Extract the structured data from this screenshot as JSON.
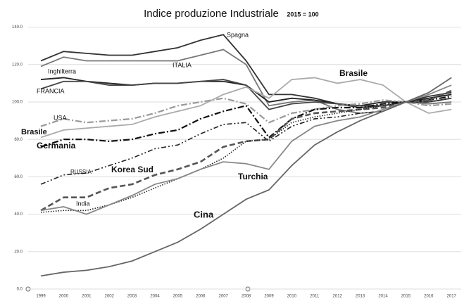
{
  "chart_data": {
    "type": "line",
    "title": "Indice produzione Industriale",
    "subtitle": "2015 = 100",
    "categories": [
      "1999",
      "2000",
      "2001",
      "2002",
      "2003",
      "2004",
      "2005",
      "2006",
      "2007",
      "2008",
      "2009",
      "2010",
      "2011",
      "2012",
      "2013",
      "2014",
      "2015",
      "2016",
      "2017"
    ],
    "ylim": [
      0,
      150
    ],
    "yticks": [
      {
        "value": 0,
        "label": "0.0"
      },
      {
        "value": 20,
        "label": "20.0"
      },
      {
        "value": 40,
        "label": "40.0"
      },
      {
        "value": 60,
        "label": "60.0"
      },
      {
        "value": 80,
        "label": "80.0"
      },
      {
        "value": 100,
        "label": "100.0"
      },
      {
        "value": 120,
        "label": "120.0"
      },
      {
        "value": 140,
        "label": "140.0"
      }
    ],
    "grid": true,
    "series": [
      {
        "name": "Spagna",
        "color": "#333333",
        "style": "solid",
        "values": [
          122,
          127,
          126,
          125,
          125,
          127,
          129,
          133,
          136,
          122,
          104,
          104,
          102,
          99,
          97,
          98,
          100,
          103,
          105
        ]
      },
      {
        "name": "ITALIA",
        "color": "#777777",
        "style": "solid",
        "values": [
          119,
          124,
          122,
          122,
          122,
          122,
          122,
          125,
          128,
          120,
          98,
          100,
          101,
          96,
          94,
          95,
          100,
          99,
          100
        ]
      },
      {
        "name": "Inghilterra",
        "color": "#222222",
        "style": "solid",
        "values": [
          112,
          113,
          111,
          110,
          109,
          110,
          110,
          111,
          111,
          109,
          100,
          102,
          101,
          99,
          98,
          100,
          100,
          102,
          104
        ]
      },
      {
        "name": "FRANCIA",
        "color": "#444444",
        "style": "solid",
        "values": [
          107,
          111,
          111,
          109,
          109,
          110,
          110,
          111,
          112,
          109,
          96,
          99,
          100,
          99,
          98,
          98,
          100,
          100,
          102
        ]
      },
      {
        "name": "USA",
        "color": "#999999",
        "style": "dashdot",
        "values": [
          87,
          91,
          89,
          90,
          91,
          94,
          98,
          100,
          102,
          99,
          89,
          94,
          96,
          98,
          99,
          101,
          100,
          98,
          99
        ]
      },
      {
        "name": "Brasile",
        "color": "#aaaaaa",
        "style": "solid",
        "values": [
          81,
          85,
          86,
          87,
          88,
          92,
          95,
          98,
          104,
          108,
          102,
          112,
          113,
          110,
          112,
          109,
          100,
          94,
          96
        ]
      },
      {
        "name": "Germania",
        "color": "#111111",
        "style": "dashdot",
        "values": [
          76,
          80,
          80,
          79,
          80,
          83,
          85,
          91,
          95,
          98,
          81,
          91,
          96,
          97,
          97,
          99,
          100,
          101,
          103
        ]
      },
      {
        "name": "RUSSIA",
        "color": "#222222",
        "style": "dashdotdot",
        "values": [
          56,
          61,
          62,
          66,
          70,
          75,
          77,
          83,
          88,
          89,
          79,
          87,
          91,
          92,
          94,
          95,
          100,
          100,
          102
        ]
      },
      {
        "name": "Korea Sud",
        "color": "#555555",
        "style": "dashed",
        "values": [
          42,
          49,
          49,
          54,
          56,
          61,
          64,
          68,
          76,
          79,
          80,
          91,
          94,
          95,
          96,
          97,
          100,
          101,
          106
        ]
      },
      {
        "name": "India",
        "color": "#222222",
        "style": "dotted",
        "values": [
          41,
          42,
          42,
          45,
          49,
          54,
          59,
          64,
          70,
          79,
          80,
          89,
          92,
          94,
          96,
          98,
          100,
          102,
          104
        ]
      },
      {
        "name": "Turchia",
        "color": "#888888",
        "style": "solid",
        "values": [
          42,
          44,
          40,
          45,
          50,
          56,
          59,
          64,
          68,
          67,
          64,
          79,
          87,
          90,
          92,
          96,
          100,
          104,
          109
        ]
      },
      {
        "name": "Cina",
        "color": "#666666",
        "style": "solid",
        "values": [
          7,
          9,
          10,
          12,
          15,
          20,
          25,
          32,
          40,
          48,
          53,
          66,
          77,
          84,
          90,
          95,
          100,
          105,
          113
        ]
      }
    ]
  }
}
